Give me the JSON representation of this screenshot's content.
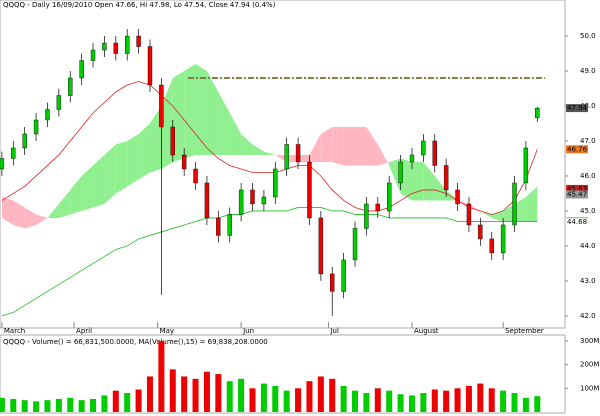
{
  "chart_data": {
    "type": "candlestick",
    "title": "QQQQ - Daily 16/09/2010 Open 47.66, Hi 47.98, Lo 47.54, Close 47.94 (0.4%)",
    "xticks": [
      {
        "value": 0,
        "label": "March"
      },
      {
        "value": 19,
        "label": "April"
      },
      {
        "value": 41,
        "label": "May"
      },
      {
        "value": 63,
        "label": "Jun"
      },
      {
        "value": 86,
        "label": "Jul"
      },
      {
        "value": 108,
        "label": "August"
      },
      {
        "value": 132,
        "label": "September"
      }
    ],
    "xlim": [
      -0.5,
      148.3
    ],
    "ylim": [
      41.74,
      51.03
    ],
    "yticks": [
      {
        "value": 42,
        "label": "42.0"
      },
      {
        "value": 43,
        "label": "43.0"
      },
      {
        "value": 44,
        "label": "44.0"
      },
      {
        "value": 45,
        "label": "45.0"
      },
      {
        "value": 46,
        "label": "46.0"
      },
      {
        "value": 47,
        "label": "47.0"
      },
      {
        "value": 48,
        "label": "48.0"
      },
      {
        "value": 49,
        "label": "49.0"
      },
      {
        "value": 50,
        "label": "50.0"
      }
    ],
    "up_color": "#00cc00",
    "down_color": "#ee0000",
    "candles": {
      "x": [
        0,
        3,
        6,
        9,
        12,
        15,
        18,
        21,
        24,
        27,
        30,
        33,
        36,
        39,
        42,
        45,
        48,
        51,
        54,
        57,
        60,
        63,
        66,
        69,
        72,
        75,
        78,
        81,
        84,
        87,
        90,
        93,
        96,
        99,
        102,
        105,
        108,
        111,
        114,
        117,
        120,
        123,
        126,
        129,
        132,
        135,
        138,
        141
      ],
      "open": [
        46.2,
        46.5,
        46.8,
        47.2,
        47.6,
        47.9,
        48.3,
        48.8,
        49.3,
        49.6,
        49.8,
        49.5,
        50.0,
        49.7,
        48.6,
        47.4,
        46.6,
        46.2,
        45.8,
        44.8,
        44.3,
        44.9,
        45.6,
        45.2,
        45.4,
        46.2,
        46.9,
        46.4,
        44.8,
        43.2,
        42.7,
        43.6,
        44.5,
        45.2,
        45.0,
        45.8,
        46.4,
        46.6,
        47.0,
        46.3,
        45.6,
        45.2,
        44.6,
        44.2,
        43.8,
        44.6,
        45.8,
        47.66
      ],
      "high": [
        46.7,
        47.0,
        47.4,
        47.8,
        48.1,
        48.5,
        49.0,
        49.5,
        49.8,
        50.0,
        50.0,
        50.2,
        50.2,
        49.9,
        48.8,
        47.6,
        46.8,
        46.4,
        46.0,
        45.0,
        45.1,
        45.8,
        45.8,
        45.6,
        46.4,
        47.1,
        47.1,
        46.6,
        45.0,
        43.4,
        43.8,
        44.7,
        45.4,
        45.4,
        46.0,
        46.6,
        46.8,
        47.2,
        47.2,
        46.5,
        45.8,
        45.4,
        44.8,
        44.4,
        44.8,
        46.0,
        47.0,
        47.98
      ],
      "low": [
        46.0,
        46.3,
        46.6,
        47.0,
        47.4,
        47.7,
        48.1,
        48.6,
        49.1,
        49.4,
        49.3,
        49.3,
        49.5,
        48.4,
        42.6,
        46.4,
        46.0,
        45.6,
        44.6,
        44.1,
        44.1,
        44.7,
        45.0,
        45.0,
        45.2,
        46.0,
        46.2,
        44.6,
        43.0,
        42.0,
        42.5,
        43.4,
        44.3,
        44.8,
        44.8,
        45.6,
        46.2,
        46.4,
        46.1,
        45.4,
        45.0,
        44.4,
        44.0,
        43.6,
        43.6,
        44.4,
        45.6,
        47.54
      ],
      "close": [
        46.5,
        46.8,
        47.2,
        47.6,
        47.9,
        48.3,
        48.8,
        49.3,
        49.6,
        49.8,
        49.5,
        50.0,
        49.7,
        48.6,
        47.4,
        46.6,
        46.2,
        45.8,
        44.8,
        44.3,
        44.9,
        45.6,
        45.2,
        45.4,
        46.2,
        46.9,
        46.4,
        44.8,
        43.2,
        42.7,
        43.6,
        44.5,
        45.2,
        45.0,
        45.8,
        46.4,
        46.6,
        47.0,
        46.3,
        45.6,
        45.2,
        44.6,
        44.2,
        43.8,
        44.6,
        45.8,
        46.8,
        47.94
      ]
    },
    "cloud": {
      "up_color": "#90f090",
      "down_color": "#ffb6c1",
      "span_a": [
        44.8,
        44.6,
        44.5,
        44.6,
        44.8,
        45.2,
        45.6,
        46.0,
        46.3,
        46.6,
        46.9,
        47.0,
        47.2,
        47.5,
        48.0,
        48.8,
        49.0,
        49.2,
        49.0,
        48.4,
        47.8,
        47.2,
        46.9,
        46.7,
        46.6,
        46.4,
        46.4,
        46.4,
        46.4,
        46.4,
        46.3,
        46.3,
        46.3,
        46.3,
        46.4,
        46.5,
        46.4,
        46.4,
        46.0,
        45.6,
        45.3,
        45.1,
        45.0,
        44.9,
        45.0,
        45.2,
        45.4,
        45.7
      ],
      "span_b": [
        45.4,
        45.3,
        45.1,
        44.9,
        44.8,
        44.8,
        44.9,
        45.0,
        45.1,
        45.2,
        45.5,
        45.7,
        45.9,
        46.1,
        46.2,
        46.4,
        46.5,
        46.6,
        46.6,
        46.6,
        46.6,
        46.6,
        46.6,
        46.6,
        46.6,
        46.6,
        46.6,
        46.6,
        47.2,
        47.4,
        47.4,
        47.4,
        47.4,
        46.9,
        46.3,
        45.5,
        45.3,
        45.3,
        45.3,
        45.3,
        45.3,
        45.2,
        45.0,
        44.8,
        44.7,
        44.7,
        44.7,
        44.7
      ]
    },
    "lines": [
      {
        "color": "#dd2222",
        "values": [
          45.3,
          45.5,
          45.7,
          46.0,
          46.3,
          46.6,
          47.0,
          47.4,
          47.8,
          48.1,
          48.4,
          48.6,
          48.7,
          48.6,
          48.3,
          48.0,
          47.6,
          47.2,
          46.8,
          46.5,
          46.3,
          46.2,
          46.1,
          46.1,
          46.1,
          46.2,
          46.3,
          46.3,
          46.0,
          45.6,
          45.3,
          45.1,
          45.0,
          45.0,
          45.1,
          45.3,
          45.5,
          45.6,
          45.6,
          45.5,
          45.3,
          45.1,
          45.0,
          44.9,
          45.0,
          45.3,
          45.9,
          46.76
        ]
      },
      {
        "color": "#22bb22",
        "values": [
          42.0,
          42.1,
          42.3,
          42.5,
          42.7,
          42.9,
          43.1,
          43.3,
          43.5,
          43.7,
          43.9,
          44.0,
          44.2,
          44.3,
          44.4,
          44.5,
          44.6,
          44.7,
          44.8,
          44.8,
          44.9,
          44.9,
          45.0,
          45.0,
          45.0,
          45.0,
          45.1,
          45.1,
          45.1,
          45.0,
          45.0,
          44.9,
          44.9,
          44.9,
          44.8,
          44.8,
          44.8,
          44.8,
          44.8,
          44.8,
          44.7,
          44.7,
          44.7,
          44.7,
          44.7,
          44.7,
          44.7,
          44.7
        ]
      }
    ],
    "reference_line": {
      "value": 48.8,
      "x": [
        49,
        143
      ],
      "color": "#808040"
    },
    "price_tags": [
      {
        "value": 47.94,
        "color": "#555555"
      },
      {
        "value": 46.76,
        "color": "#ee7722"
      },
      {
        "value": 45.63,
        "color": "#cc2222"
      },
      {
        "value": 45.47,
        "color": "#999999"
      },
      {
        "value": 44.7,
        "label": "44.70",
        "color": "#22aa22"
      },
      {
        "value": 44.68,
        "color": "#ffffff"
      }
    ],
    "volume": {
      "title": "QQQQ - Volume() = 66,831,500.0000, MA(Volume(),15) = 69,838,208.0000",
      "ylim": [
        0,
        325000000
      ],
      "yticks": [
        {
          "value": 100000000,
          "label": "100M"
        },
        {
          "value": 200000000,
          "label": "200M"
        },
        {
          "value": 300000000,
          "label": "300M"
        }
      ],
      "values": [
        60000000,
        55000000,
        50000000,
        45000000,
        50000000,
        55000000,
        60000000,
        50000000,
        55000000,
        70000000,
        90000000,
        80000000,
        95000000,
        150000000,
        300000000,
        180000000,
        150000000,
        140000000,
        170000000,
        160000000,
        130000000,
        140000000,
        100000000,
        120000000,
        110000000,
        90000000,
        100000000,
        130000000,
        150000000,
        140000000,
        110000000,
        90000000,
        80000000,
        100000000,
        90000000,
        75000000,
        70000000,
        80000000,
        95000000,
        90000000,
        100000000,
        110000000,
        120000000,
        100000000,
        90000000,
        80000000,
        60000000,
        66831500
      ]
    }
  }
}
